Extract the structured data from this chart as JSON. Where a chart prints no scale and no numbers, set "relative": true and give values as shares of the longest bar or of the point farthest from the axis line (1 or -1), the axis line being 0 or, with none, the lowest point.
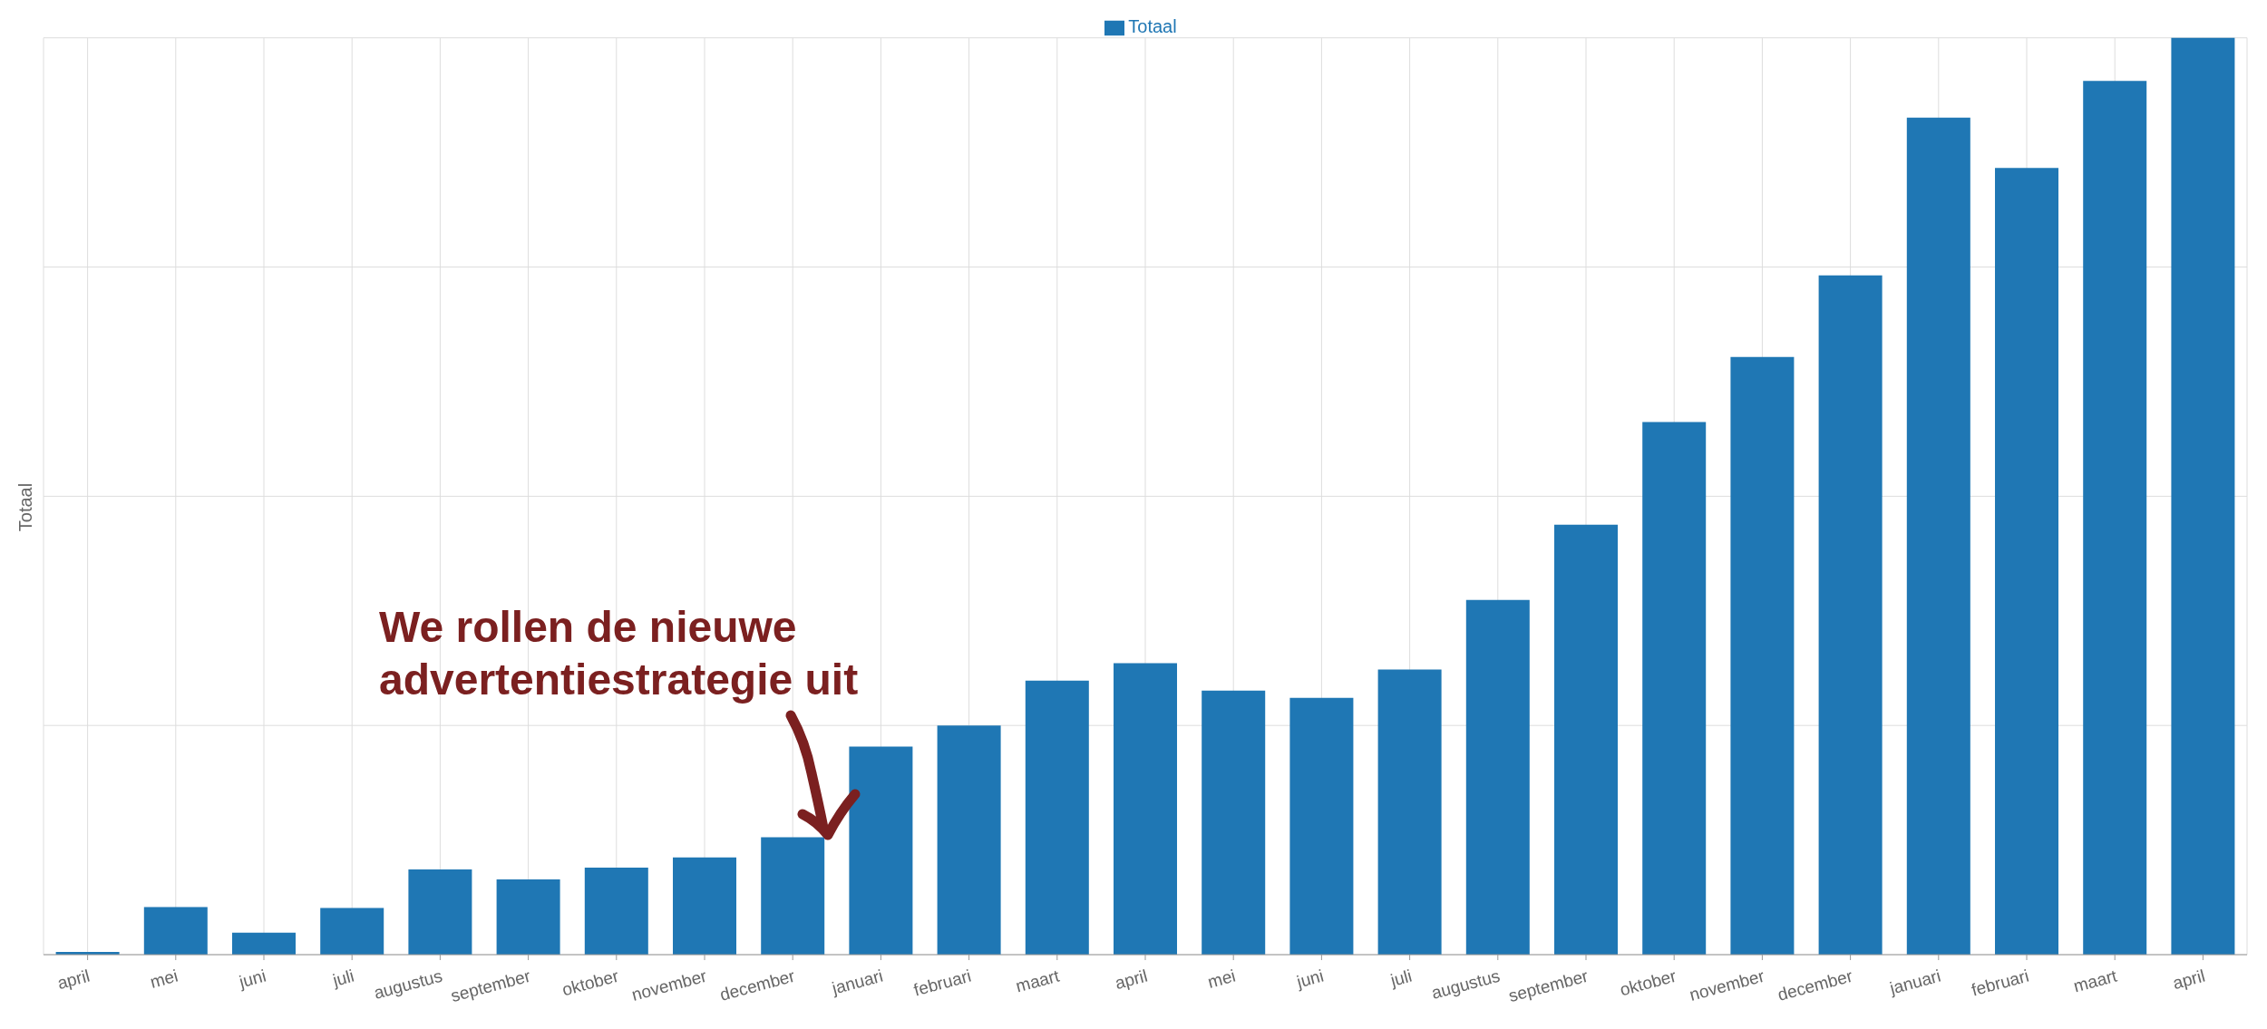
{
  "chart_data": {
    "type": "bar",
    "relative": true,
    "ylabel": "Totaal",
    "legend": "top",
    "grid": true,
    "annotations": [
      "We rollen de nieuwe advertentiestrategie uit"
    ],
    "categories": [
      "april",
      "mei",
      "juni",
      "juli",
      "augustus",
      "september",
      "oktober",
      "november",
      "december",
      "januari",
      "februari",
      "maart",
      "april",
      "mei",
      "juni",
      "juli",
      "augustus",
      "september",
      "oktober",
      "november",
      "december",
      "januari",
      "februari",
      "maart",
      "april"
    ],
    "series": [
      {
        "name": "Totaal",
        "color": "#1f77b4",
        "values": [
          0.003,
          0.052,
          0.024,
          0.051,
          0.093,
          0.082,
          0.095,
          0.106,
          0.128,
          0.227,
          0.25,
          0.299,
          0.318,
          0.288,
          0.28,
          0.311,
          0.387,
          0.469,
          0.581,
          0.652,
          0.741,
          0.913,
          0.858,
          0.953,
          1
        ]
      }
    ]
  }
}
